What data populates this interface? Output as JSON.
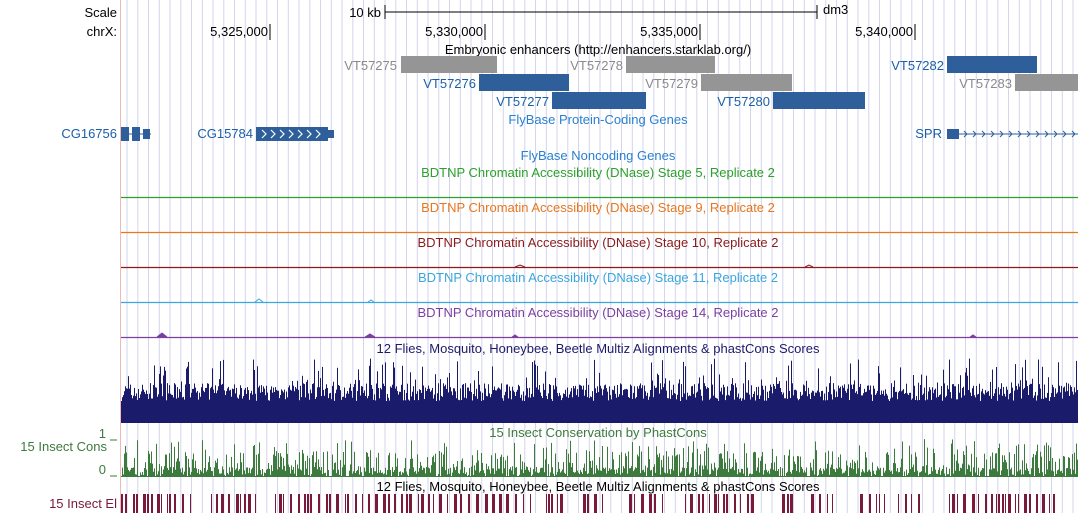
{
  "ruler": {
    "scale_label": "Scale",
    "chrom_label": "chrX:",
    "scale_value": "10 kb",
    "assembly": "dm3",
    "ticks": [
      "5,325,000",
      "5,330,000",
      "5,335,000",
      "5,340,000"
    ]
  },
  "tracks": {
    "enhancers": {
      "title": "Embryonic enhancers (http://enhancers.starklab.org/)",
      "items": [
        {
          "name": "VT57275",
          "color": "gray"
        },
        {
          "name": "VT57276",
          "color": "blue"
        },
        {
          "name": "VT57277",
          "color": "blue"
        },
        {
          "name": "VT57278",
          "color": "gray"
        },
        {
          "name": "VT57279",
          "color": "gray"
        },
        {
          "name": "VT57280",
          "color": "blue"
        },
        {
          "name": "VT57282",
          "color": "blue"
        },
        {
          "name": "VT57283",
          "color": "gray"
        }
      ]
    },
    "protein_coding": {
      "title": "FlyBase Protein-Coding Genes",
      "genes": [
        "CG16756",
        "CG15784",
        "SPR"
      ]
    },
    "noncoding": {
      "title": "FlyBase Noncoding Genes"
    },
    "dnase": [
      {
        "title": "BDTNP Chromatin Accessibility (DNase) Stage 5, Replicate 2",
        "color": "#2ca02c"
      },
      {
        "title": "BDTNP Chromatin Accessibility (DNase) Stage 9, Replicate 2",
        "color": "#e8771e"
      },
      {
        "title": "BDTNP Chromatin Accessibility (DNase) Stage 10, Replicate 2",
        "color": "#8b1a1a"
      },
      {
        "title": "BDTNP Chromatin Accessibility (DNase) Stage 11, Replicate 2",
        "color": "#3aa6dd"
      },
      {
        "title": "BDTNP Chromatin Accessibility (DNase) Stage 14, Replicate 2",
        "color": "#7b3fa0"
      }
    ],
    "multiz": {
      "title": "12 Flies, Mosquito, Honeybee, Beetle Multiz Alignments & phastCons Scores",
      "color": "#1b1b6b"
    },
    "insect_cons": {
      "title": "15 Insect Conservation by PhastCons",
      "side_label": "15 Insect Cons",
      "axis_max": "1",
      "axis_min": "0",
      "color": "#3d7a3d"
    },
    "insect_el": {
      "title": "12 Flies, Mosquito, Honeybee, Beetle Multiz Alignments & phastCons Scores",
      "side_label": "15 Insect El",
      "color": "#7a1a3a"
    }
  },
  "colors": {
    "feature_blue": "#2e5f9a",
    "feature_gray": "#959595",
    "label_blue": "#1a5fa8",
    "label_gray": "#8a8a8a",
    "title_blue": "#2a7fd0",
    "grid": "#d4d4ec",
    "red_guide": "#f2b8b8"
  }
}
